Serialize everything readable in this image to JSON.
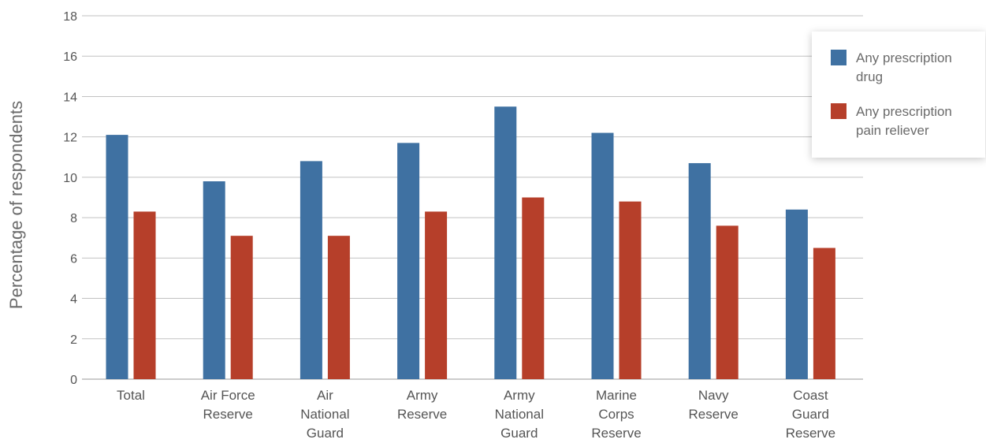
{
  "chart_data": {
    "type": "bar",
    "ylabel": "Percentage of respondents",
    "xlabel": "",
    "ylim": [
      0,
      18
    ],
    "y_ticks": [
      0,
      2,
      4,
      6,
      8,
      10,
      12,
      14,
      16,
      18
    ],
    "grid": true,
    "legend_position": "top-right",
    "categories": [
      [
        "Total"
      ],
      [
        "Air Force",
        "Reserve"
      ],
      [
        "Air",
        "National",
        "Guard"
      ],
      [
        "Army",
        "Reserve"
      ],
      [
        "Army",
        "National",
        "Guard"
      ],
      [
        "Marine",
        "Corps",
        "Reserve"
      ],
      [
        "Navy",
        "Reserve"
      ],
      [
        "Coast",
        "Guard",
        "Reserve"
      ]
    ],
    "series": [
      {
        "name": "Any prescription drug",
        "color": "#3F71A2",
        "values": [
          12.1,
          9.8,
          10.8,
          11.7,
          13.5,
          12.2,
          10.7,
          8.4
        ]
      },
      {
        "name": "Any prescription pain reliever",
        "color": "#B63F2A",
        "values": [
          8.3,
          7.1,
          7.1,
          8.3,
          9.0,
          8.8,
          7.6,
          6.5
        ]
      }
    ]
  },
  "legend": {
    "items": [
      {
        "label_lines": [
          "Any prescription",
          "drug"
        ],
        "color": "#3F71A2"
      },
      {
        "label_lines": [
          "Any prescription",
          "pain reliever"
        ],
        "color": "#B63F2A"
      }
    ]
  }
}
